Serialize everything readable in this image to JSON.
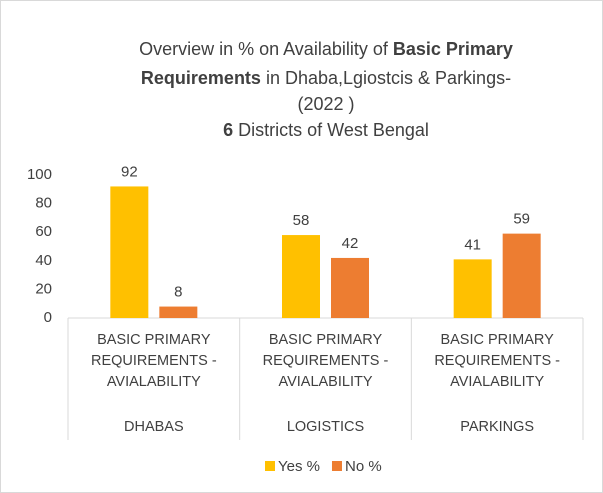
{
  "chart_data": {
    "type": "bar",
    "title": [
      "Overview in % on Availability of ",
      "Basic Primary",
      "Requirements",
      " in Dhaba,Lgiostcis & Parkings-",
      "(2022 )",
      "6",
      " Districts of West Bengal"
    ],
    "categories": [
      "BASIC PRIMARY REQUIREMENTS - AVIALABILITY",
      "BASIC PRIMARY REQUIREMENTS - AVIALABILITY",
      "BASIC PRIMARY REQUIREMENTS - AVIALABILITY"
    ],
    "groups": [
      "DHABAS",
      "LOGISTICS",
      "PARKINGS"
    ],
    "series": [
      {
        "name": "Yes %",
        "color": "#ffc000",
        "values": [
          92,
          58,
          41
        ]
      },
      {
        "name": "No %",
        "color": "#ed7d31",
        "values": [
          8,
          42,
          59
        ]
      }
    ],
    "ylim": [
      0,
      100
    ],
    "yticks": [
      0,
      20,
      40,
      60,
      80,
      100
    ],
    "grid": false,
    "legend": "bottom"
  }
}
